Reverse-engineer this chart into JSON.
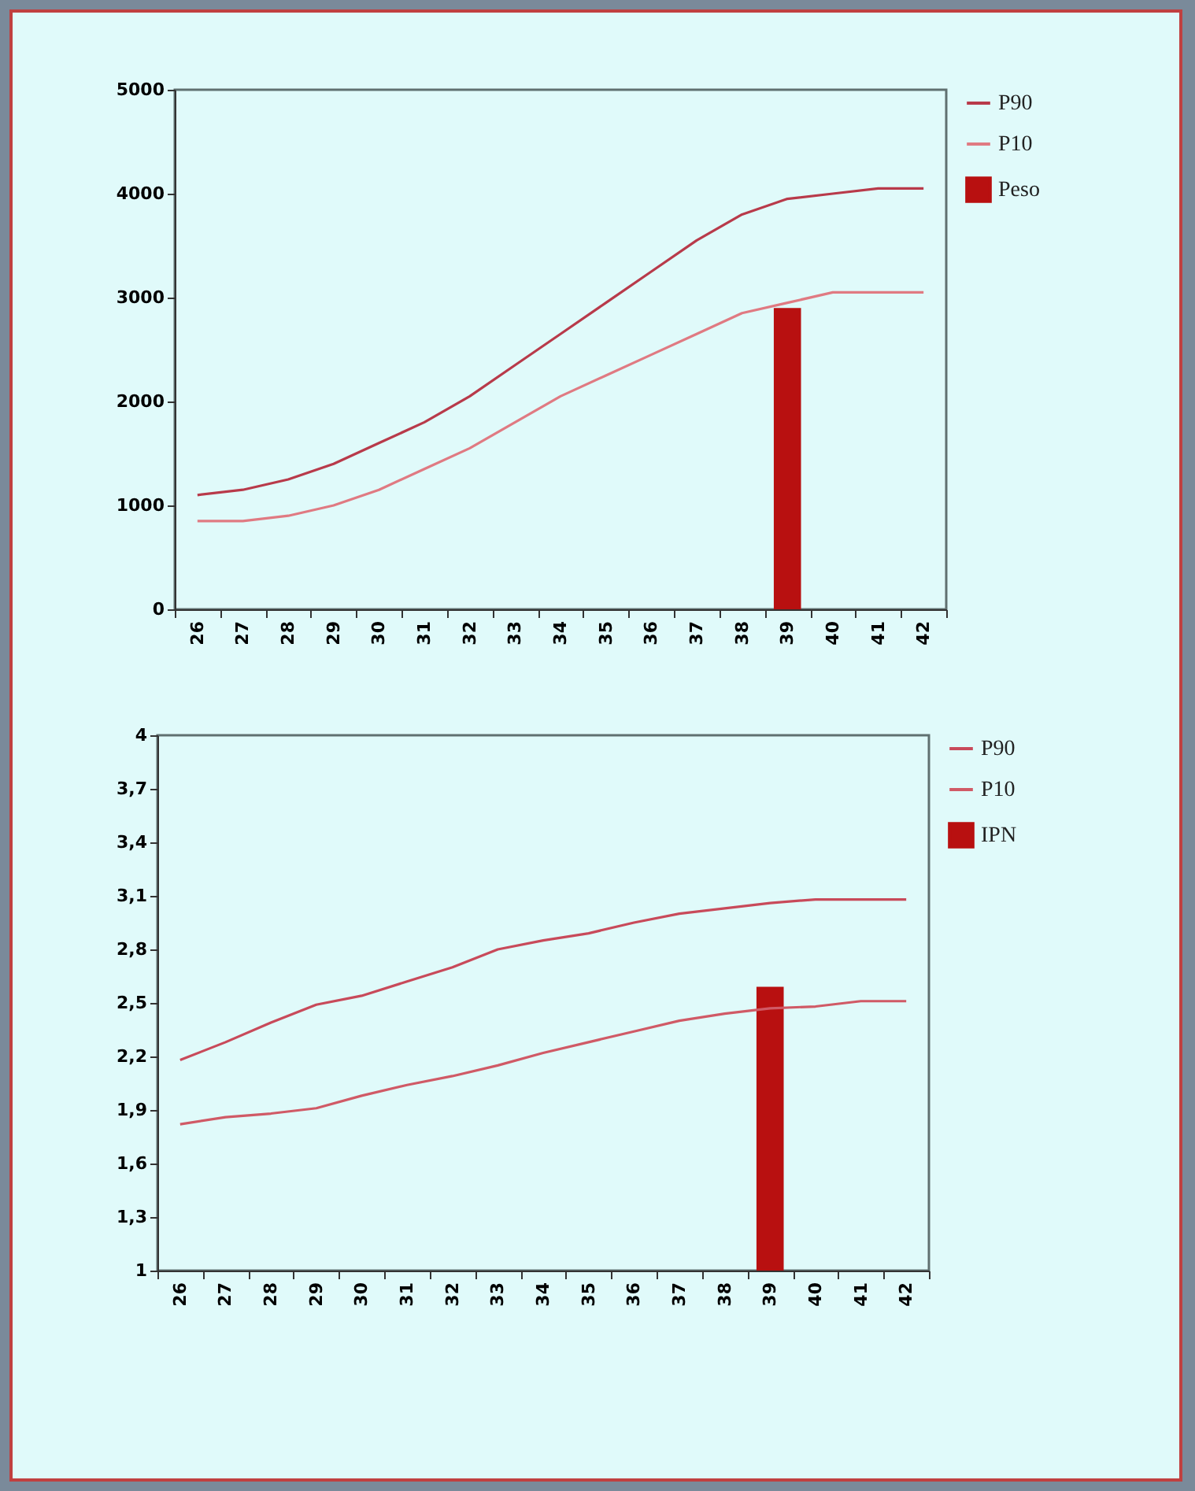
{
  "chart_data": [
    {
      "type": "line",
      "categories": [
        "26",
        "27",
        "28",
        "29",
        "30",
        "31",
        "32",
        "33",
        "34",
        "35",
        "36",
        "37",
        "38",
        "39",
        "40",
        "41",
        "42"
      ],
      "series": [
        {
          "name": "P90",
          "color": "#b83a4a",
          "values": [
            1100,
            1150,
            1250,
            1400,
            1600,
            1800,
            2050,
            2350,
            2650,
            2950,
            3250,
            3550,
            3800,
            3950,
            4000,
            4050,
            4050
          ]
        },
        {
          "name": "P10",
          "color": "#e07a82",
          "values": [
            850,
            850,
            900,
            1000,
            1150,
            1350,
            1550,
            1800,
            2050,
            2250,
            2450,
            2650,
            2850,
            2950,
            3050,
            3050,
            3050
          ]
        },
        {
          "name": "Peso",
          "type": "bar",
          "color": "#b81010",
          "values": [
            null,
            null,
            null,
            null,
            null,
            null,
            null,
            null,
            null,
            null,
            null,
            null,
            null,
            2900,
            null,
            null,
            null
          ]
        }
      ],
      "ylim": [
        0,
        5000
      ],
      "yticks": [
        0,
        1000,
        2000,
        3000,
        4000,
        5000
      ],
      "legend": "right",
      "marker": "none"
    },
    {
      "type": "line",
      "categories": [
        "26",
        "27",
        "28",
        "29",
        "30",
        "31",
        "32",
        "33",
        "34",
        "35",
        "36",
        "37",
        "38",
        "39",
        "40",
        "41",
        "42"
      ],
      "series": [
        {
          "name": "P90",
          "color": "#c84a5a",
          "values": [
            2.18,
            2.28,
            2.39,
            2.49,
            2.54,
            2.62,
            2.7,
            2.8,
            2.85,
            2.89,
            2.95,
            3.0,
            3.03,
            3.06,
            3.08,
            3.08,
            3.08
          ]
        },
        {
          "name": "P10",
          "color": "#d05a66",
          "values": [
            1.82,
            1.86,
            1.88,
            1.91,
            1.98,
            2.04,
            2.09,
            2.15,
            2.22,
            2.28,
            2.34,
            2.4,
            2.44,
            2.47,
            2.48,
            2.51,
            2.51
          ]
        },
        {
          "name": "IPN",
          "type": "bar",
          "color": "#b81010",
          "values": [
            null,
            null,
            null,
            null,
            null,
            null,
            null,
            null,
            null,
            null,
            null,
            null,
            null,
            2.59,
            null,
            null,
            null
          ]
        }
      ],
      "ylim": [
        1,
        4
      ],
      "yticks": [
        1,
        {
          "value": 1.3,
          "label": "1,3"
        },
        {
          "value": 1.6,
          "label": "1,6"
        },
        {
          "value": 1.9,
          "label": "1,9"
        },
        {
          "value": 2.2,
          "label": "2,2"
        },
        {
          "value": 2.5,
          "label": "2,5"
        },
        {
          "value": 2.8,
          "label": "2,8"
        },
        {
          "value": 3.1,
          "label": "3,1"
        },
        {
          "value": 3.4,
          "label": "3,4"
        },
        {
          "value": 3.7,
          "label": "3,7"
        },
        4
      ],
      "legend": "right",
      "marker": "none"
    }
  ]
}
